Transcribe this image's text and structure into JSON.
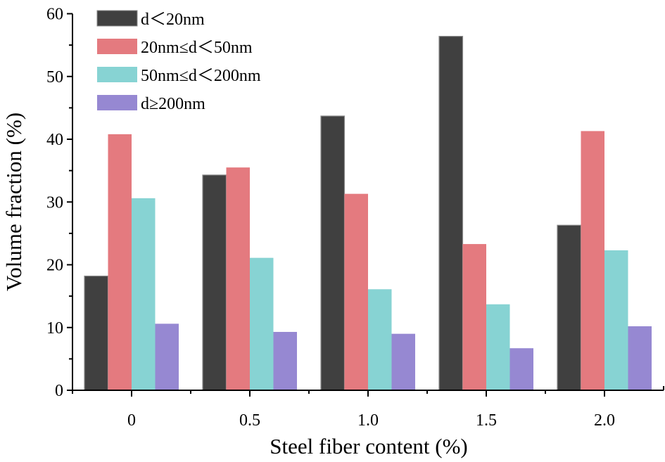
{
  "chart_data": {
    "type": "bar",
    "title": "",
    "xlabel": "Steel fiber content (%)",
    "ylabel": "Volume fraction (%)",
    "categories": [
      "0",
      "0.5",
      "1.0",
      "1.5",
      "2.0"
    ],
    "ylim": [
      0,
      60
    ],
    "yticks": [
      0,
      10,
      20,
      30,
      40,
      50,
      60
    ],
    "ytick_labels": [
      "0",
      "10",
      "20",
      "30",
      "40",
      "50",
      "60"
    ],
    "grid": false,
    "legend_position": "top-left",
    "series": [
      {
        "name": "d＜20nm",
        "color": "#404040",
        "values": [
          18.2,
          34.3,
          43.7,
          56.4,
          26.3
        ]
      },
      {
        "name": "20nm≤d＜50nm",
        "color": "#e47a7f",
        "values": [
          40.8,
          35.5,
          31.3,
          23.3,
          41.3
        ]
      },
      {
        "name": "50nm≤d＜200nm",
        "color": "#87d3d3",
        "values": [
          30.6,
          21.1,
          16.1,
          13.7,
          22.3
        ]
      },
      {
        "name": "d≥200nm",
        "color": "#9688d2",
        "values": [
          10.6,
          9.3,
          9.0,
          6.7,
          10.2
        ]
      }
    ]
  }
}
